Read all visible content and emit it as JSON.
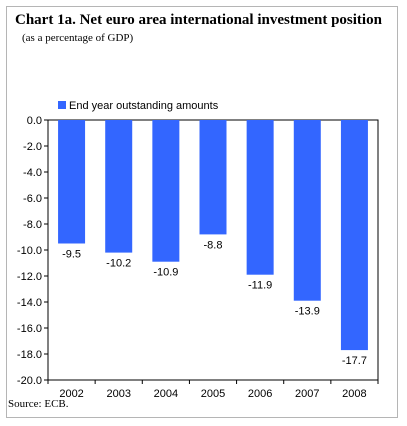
{
  "chart_data": {
    "type": "bar",
    "title": "Chart 1a. Net euro area international investment position",
    "subtitle": "(as a percentage of GDP)",
    "source": "Source: ECB.",
    "categories": [
      "2002",
      "2003",
      "2004",
      "2005",
      "2006",
      "2007",
      "2008"
    ],
    "series": [
      {
        "name": "End year outstanding amounts",
        "color": "#3366ff",
        "values": [
          -9.5,
          -10.2,
          -10.9,
          -8.8,
          -11.9,
          -13.9,
          -17.7
        ],
        "labels": [
          "-9.5",
          "-10.2",
          "-10.9",
          "-8.8",
          "-11.9",
          "-13.9",
          "-17.7"
        ]
      }
    ],
    "ylim": [
      -20.0,
      0.0
    ],
    "yticks": [
      0,
      -2,
      -4,
      -6,
      -8,
      -10,
      -12,
      -14,
      -16,
      -18,
      -20
    ],
    "ytick_labels": [
      "0.0",
      "-2.0",
      "-4.0",
      "-6.0",
      "-8.0",
      "-10.0",
      "-12.0",
      "-14.0",
      "-16.0",
      "-18.0",
      "-20.0"
    ],
    "grid": false,
    "legend_position": "top-left"
  }
}
